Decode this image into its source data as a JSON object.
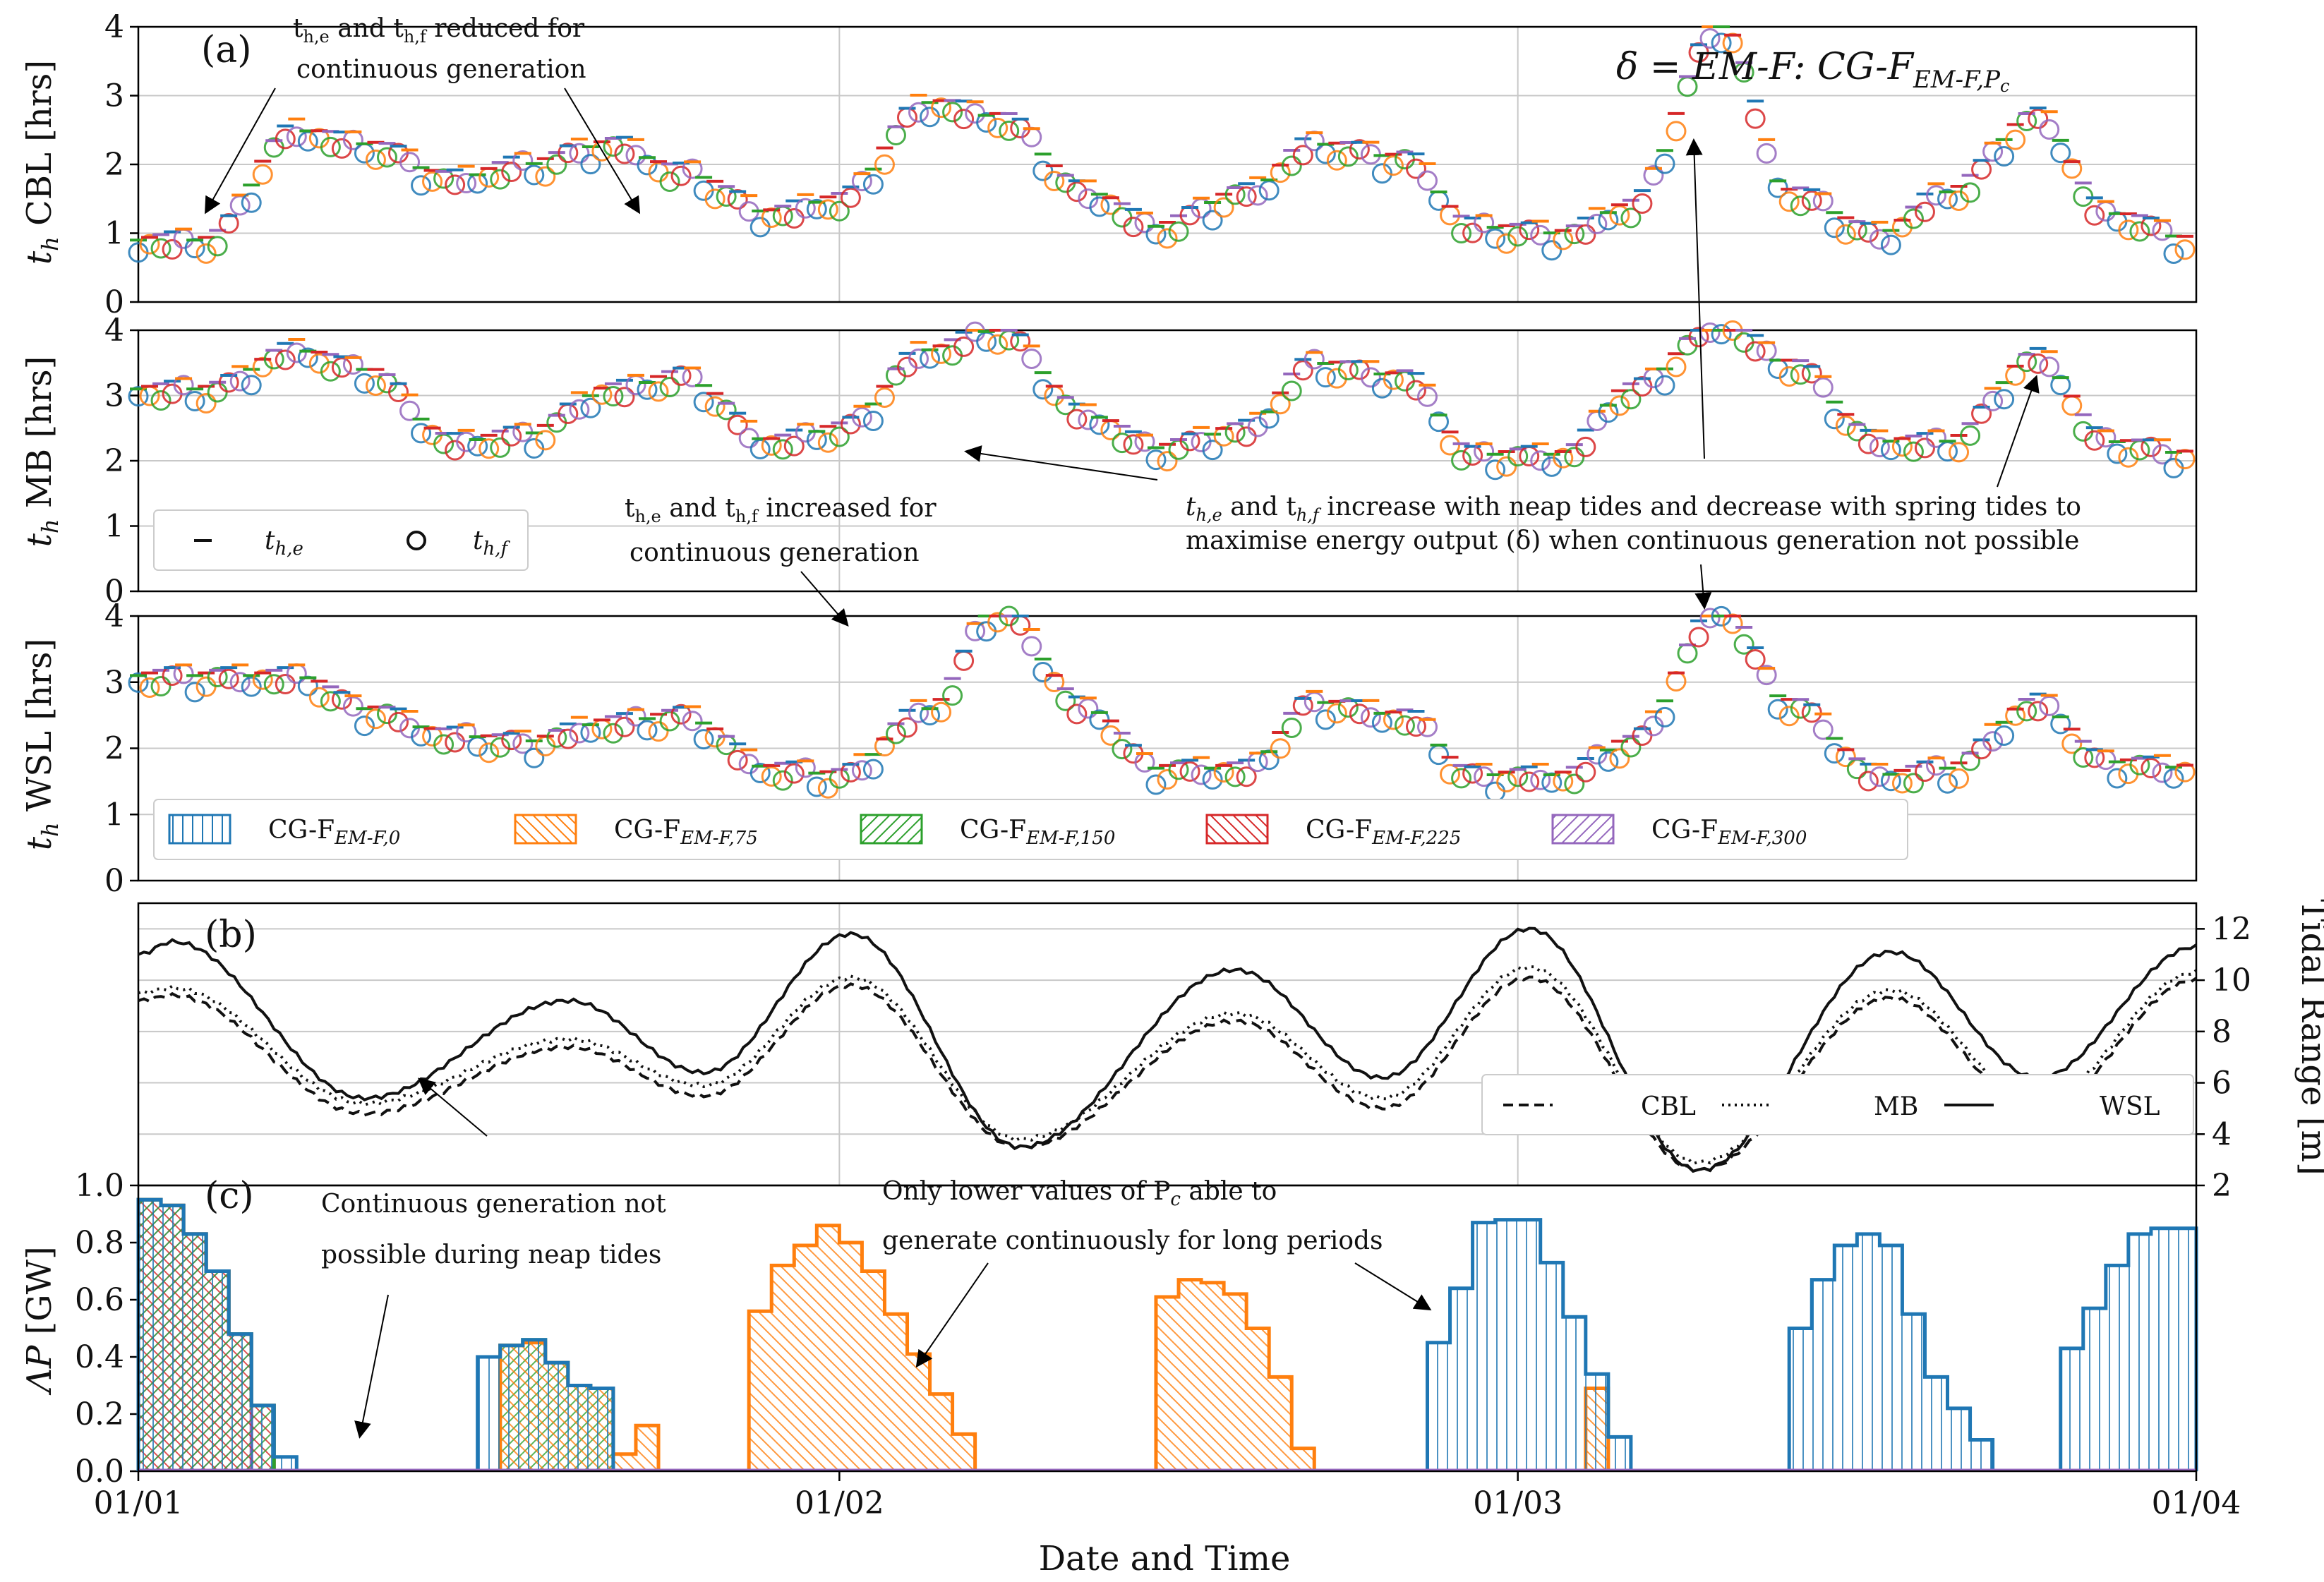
{
  "chart_data": {
    "type": "line",
    "xlabel": "Date and Time",
    "x_ticks": [
      "01/01",
      "01/02",
      "01/03",
      "01/04"
    ],
    "x_range_days": [
      0,
      91
    ],
    "panels": [
      {
        "id": "a",
        "label": "(a)",
        "subplots": [
          {
            "ylabel_main": "t",
            "ylabel_sub": "h",
            "ylabel_rest": " CBL [hrs]",
            "ylim": [
              0,
              4
            ],
            "yticks": [
              "0",
              "1",
              "2",
              "3",
              "4"
            ],
            "env_key": "cbl"
          },
          {
            "ylabel_main": "t",
            "ylabel_sub": "h",
            "ylabel_rest": " MB [hrs]",
            "ylim": [
              0,
              4
            ],
            "yticks": [
              "0",
              "1",
              "2",
              "3",
              "4"
            ],
            "env_key": "mb"
          },
          {
            "ylabel_main": "t",
            "ylabel_sub": "h",
            "ylabel_rest": " WSL [hrs]",
            "ylim": [
              0,
              4
            ],
            "yticks": [
              "0",
              "1",
              "2",
              "3",
              "4"
            ],
            "env_key": "wsl"
          }
        ],
        "markers_legend": [
          {
            "symbol": "−",
            "main": "t",
            "sub": "h,e"
          },
          {
            "symbol": "○",
            "main": "t",
            "sub": "h,f"
          }
        ],
        "cases_legend": [
          {
            "main": "CG-F",
            "sub": "EM-F,0",
            "color": "#1f77b4",
            "hatch": "vertical"
          },
          {
            "main": "CG-F",
            "sub": "EM-F,75",
            "color": "#ff7f0e",
            "hatch": "diag-down"
          },
          {
            "main": "CG-F",
            "sub": "EM-F,150",
            "color": "#2ca02c",
            "hatch": "diag-up"
          },
          {
            "main": "CG-F",
            "sub": "EM-F,225",
            "color": "#d62728",
            "hatch": "diag-down"
          },
          {
            "main": "CG-F",
            "sub": "EM-F,300",
            "color": "#9467bd",
            "hatch": "diag-up"
          }
        ],
        "envelopes_hrs": {
          "x": [
            0,
            3,
            7,
            10,
            14,
            17,
            21,
            24,
            28,
            31,
            35,
            38,
            42,
            45,
            49,
            52,
            56,
            59,
            63,
            66,
            70,
            73,
            77,
            80,
            84,
            87,
            91
          ],
          "cbl": [
            0.8,
            0.8,
            2.4,
            2.2,
            1.7,
            1.9,
            2.2,
            1.8,
            1.2,
            1.4,
            2.8,
            2.6,
            1.5,
            1.0,
            1.5,
            2.2,
            2.0,
            1.0,
            0.9,
            1.3,
            3.9,
            1.5,
            0.9,
            1.5,
            2.6,
            1.2,
            0.8
          ],
          "mb": [
            3.0,
            3.0,
            3.6,
            3.3,
            2.2,
            2.3,
            3.0,
            3.2,
            2.2,
            2.4,
            3.6,
            3.9,
            2.6,
            2.1,
            2.4,
            3.4,
            3.2,
            2.0,
            2.0,
            3.0,
            4.0,
            3.4,
            2.2,
            2.2,
            3.5,
            2.2,
            2.0
          ],
          "wsl": [
            3.0,
            3.0,
            3.0,
            2.5,
            2.1,
            2.0,
            2.3,
            2.4,
            1.6,
            1.5,
            2.5,
            4.0,
            2.5,
            1.6,
            1.6,
            2.6,
            2.4,
            1.5,
            1.5,
            2.0,
            4.0,
            2.6,
            1.5,
            1.6,
            2.6,
            1.7,
            1.6
          ]
        }
      },
      {
        "id": "b",
        "label": "(b)",
        "ylabel": "Tidal Range [m]",
        "ylim": [
          2,
          13
        ],
        "yticks": [
          "2",
          "4",
          "6",
          "8",
          "10",
          "12"
        ],
        "legend": [
          "CBL",
          "MB",
          "WSL"
        ],
        "series": [
          {
            "name": "WSL",
            "style": "solid",
            "peaks": [
              [
                0,
                11.0
              ],
              [
                1.5,
                11.5
              ],
              [
                10,
                5.4
              ],
              [
                19,
                9.2
              ],
              [
                25,
                6.4
              ],
              [
                31.5,
                11.8
              ],
              [
                39,
                3.5
              ],
              [
                48.5,
                10.4
              ],
              [
                55,
                6.2
              ],
              [
                61.5,
                12.0
              ],
              [
                69,
                2.6
              ],
              [
                77.5,
                11.1
              ],
              [
                84,
                6.2
              ],
              [
                91,
                11.3
              ]
            ]
          },
          {
            "name": "MB",
            "style": "dotted",
            "peaks": [
              [
                0,
                9.5
              ],
              [
                1.5,
                9.7
              ],
              [
                10,
                5.2
              ],
              [
                19,
                7.7
              ],
              [
                25,
                5.9
              ],
              [
                31.5,
                10.1
              ],
              [
                39,
                3.8
              ],
              [
                48.5,
                8.7
              ],
              [
                55,
                5.4
              ],
              [
                61.5,
                10.5
              ],
              [
                69,
                2.9
              ],
              [
                77.5,
                9.6
              ],
              [
                84,
                5.2
              ],
              [
                91,
                10.3
              ]
            ]
          },
          {
            "name": "CBL",
            "style": "dashed",
            "peaks": [
              [
                0,
                9.2
              ],
              [
                1.5,
                9.4
              ],
              [
                10,
                4.8
              ],
              [
                19,
                7.4
              ],
              [
                25,
                5.5
              ],
              [
                31.5,
                9.8
              ],
              [
                39,
                3.5
              ],
              [
                48.5,
                8.4
              ],
              [
                55,
                5.0
              ],
              [
                61.5,
                10.1
              ],
              [
                69,
                2.6
              ],
              [
                77.5,
                9.3
              ],
              [
                84,
                4.9
              ],
              [
                91,
                10.0
              ]
            ]
          }
        ]
      },
      {
        "id": "c",
        "label": "(c)",
        "ylabel_main": "ΛP",
        "ylabel_rest": " [GW]",
        "ylim": [
          0,
          1.0
        ],
        "yticks": [
          "0.0",
          "0.2",
          "0.4",
          "0.6",
          "0.8",
          "1.0"
        ],
        "series": [
          {
            "name": "CG-F EM-F,300",
            "color": "#9467bd",
            "hatch": "diag-up",
            "bars": [
              [
                0,
                1,
                0.95
              ],
              [
                1,
                2,
                0.93
              ],
              [
                2,
                3,
                0.83
              ],
              [
                3,
                4,
                0.7
              ],
              [
                4,
                5,
                0.48
              ]
            ]
          },
          {
            "name": "CG-F EM-F,225",
            "color": "#d62728",
            "hatch": "diag-down",
            "bars": [
              [
                0,
                1,
                0.95
              ],
              [
                1,
                2,
                0.93
              ],
              [
                2,
                3,
                0.83
              ],
              [
                3,
                4,
                0.7
              ],
              [
                4,
                5,
                0.48
              ],
              [
                5,
                6,
                0.23
              ]
            ]
          },
          {
            "name": "CG-F EM-F,150",
            "color": "#2ca02c",
            "hatch": "diag-up",
            "bars": [
              [
                0,
                1,
                0.95
              ],
              [
                1,
                2,
                0.93
              ],
              [
                2,
                3,
                0.83
              ],
              [
                3,
                4,
                0.7
              ],
              [
                4,
                5,
                0.48
              ],
              [
                5,
                6,
                0.23
              ],
              [
                16,
                17,
                0.44
              ],
              [
                17,
                18,
                0.46
              ],
              [
                18,
                19,
                0.38
              ],
              [
                19,
                20,
                0.3
              ],
              [
                20,
                21,
                0.29
              ]
            ]
          },
          {
            "name": "CG-F EM-F,75",
            "color": "#ff7f0e",
            "hatch": "diag-down",
            "bars": [
              [
                16,
                17,
                0.44
              ],
              [
                17,
                18,
                0.45
              ],
              [
                18,
                19,
                0.38
              ],
              [
                19,
                20,
                0.3
              ],
              [
                20,
                21,
                0.29
              ],
              [
                21,
                22,
                0.06
              ],
              [
                22,
                23,
                0.16
              ],
              [
                27,
                28,
                0.56
              ],
              [
                28,
                29,
                0.72
              ],
              [
                29,
                30,
                0.79
              ],
              [
                30,
                31,
                0.86
              ],
              [
                31,
                32,
                0.8
              ],
              [
                32,
                33,
                0.7
              ],
              [
                33,
                34,
                0.55
              ],
              [
                34,
                35,
                0.41
              ],
              [
                35,
                36,
                0.27
              ],
              [
                36,
                37,
                0.13
              ],
              [
                45,
                46,
                0.61
              ],
              [
                46,
                47,
                0.67
              ],
              [
                47,
                48,
                0.66
              ],
              [
                48,
                49,
                0.62
              ],
              [
                49,
                50,
                0.5
              ],
              [
                50,
                51,
                0.33
              ],
              [
                51,
                52,
                0.08
              ],
              [
                64,
                65,
                0.29
              ]
            ]
          },
          {
            "name": "CG-F EM-F,0",
            "color": "#1f77b4",
            "hatch": "vertical",
            "bars": [
              [
                0,
                1,
                0.95
              ],
              [
                1,
                2,
                0.93
              ],
              [
                2,
                3,
                0.83
              ],
              [
                3,
                4,
                0.7
              ],
              [
                4,
                5,
                0.48
              ],
              [
                5,
                6,
                0.23
              ],
              [
                6,
                7,
                0.05
              ],
              [
                15,
                16,
                0.4
              ],
              [
                16,
                17,
                0.44
              ],
              [
                17,
                18,
                0.46
              ],
              [
                18,
                19,
                0.38
              ],
              [
                19,
                20,
                0.3
              ],
              [
                20,
                21,
                0.29
              ],
              [
                57,
                58,
                0.45
              ],
              [
                58,
                59,
                0.64
              ],
              [
                59,
                60,
                0.87
              ],
              [
                60,
                61,
                0.88
              ],
              [
                61,
                62,
                0.88
              ],
              [
                62,
                63,
                0.73
              ],
              [
                63,
                64,
                0.54
              ],
              [
                64,
                65,
                0.34
              ],
              [
                65,
                66,
                0.12
              ],
              [
                73,
                74,
                0.5
              ],
              [
                74,
                75,
                0.67
              ],
              [
                75,
                76,
                0.79
              ],
              [
                76,
                77,
                0.83
              ],
              [
                77,
                78,
                0.79
              ],
              [
                78,
                79,
                0.55
              ],
              [
                79,
                80,
                0.33
              ],
              [
                80,
                81,
                0.22
              ],
              [
                81,
                82,
                0.11
              ],
              [
                85,
                86,
                0.43
              ],
              [
                86,
                87,
                0.57
              ],
              [
                87,
                88,
                0.72
              ],
              [
                88,
                89,
                0.83
              ],
              [
                89,
                90,
                0.85
              ],
              [
                90,
                91,
                0.85
              ]
            ]
          }
        ]
      }
    ],
    "annotations": {
      "top_left_1": "t",
      "top_left_1_sub": "h,e",
      "top_left_2": " and t",
      "top_left_2_sub": "h,f",
      "top_left_3": " reduced for",
      "top_left_line2": "continuous generation",
      "delta_title": "δ = EM-F: CG-F",
      "delta_sub": "EM-F,P",
      "delta_subsub": "c",
      "mid_left_1": "t",
      "mid_left_1_sub": "h,e",
      "mid_left_2": " and t",
      "mid_left_2_sub": "h,f",
      "mid_left_3": " increased for",
      "mid_left_line2": "continuous generation",
      "neap_1_a": "t",
      "neap_1_asub": "h,e",
      "neap_1_b": " and t",
      "neap_1_bsub": "h,f",
      "neap_1_c": " increase with neap tides and decrease with spring tides to",
      "neap_2": "maximise energy output (δ) when continuous generation not possible",
      "cont_1": "Continuous generation not",
      "cont_2": "possible during neap tides",
      "lower_1": "Only lower values of P",
      "lower_1_sub": "c",
      "lower_1_rest": " able to",
      "lower_2": "generate continuously for long periods"
    }
  }
}
